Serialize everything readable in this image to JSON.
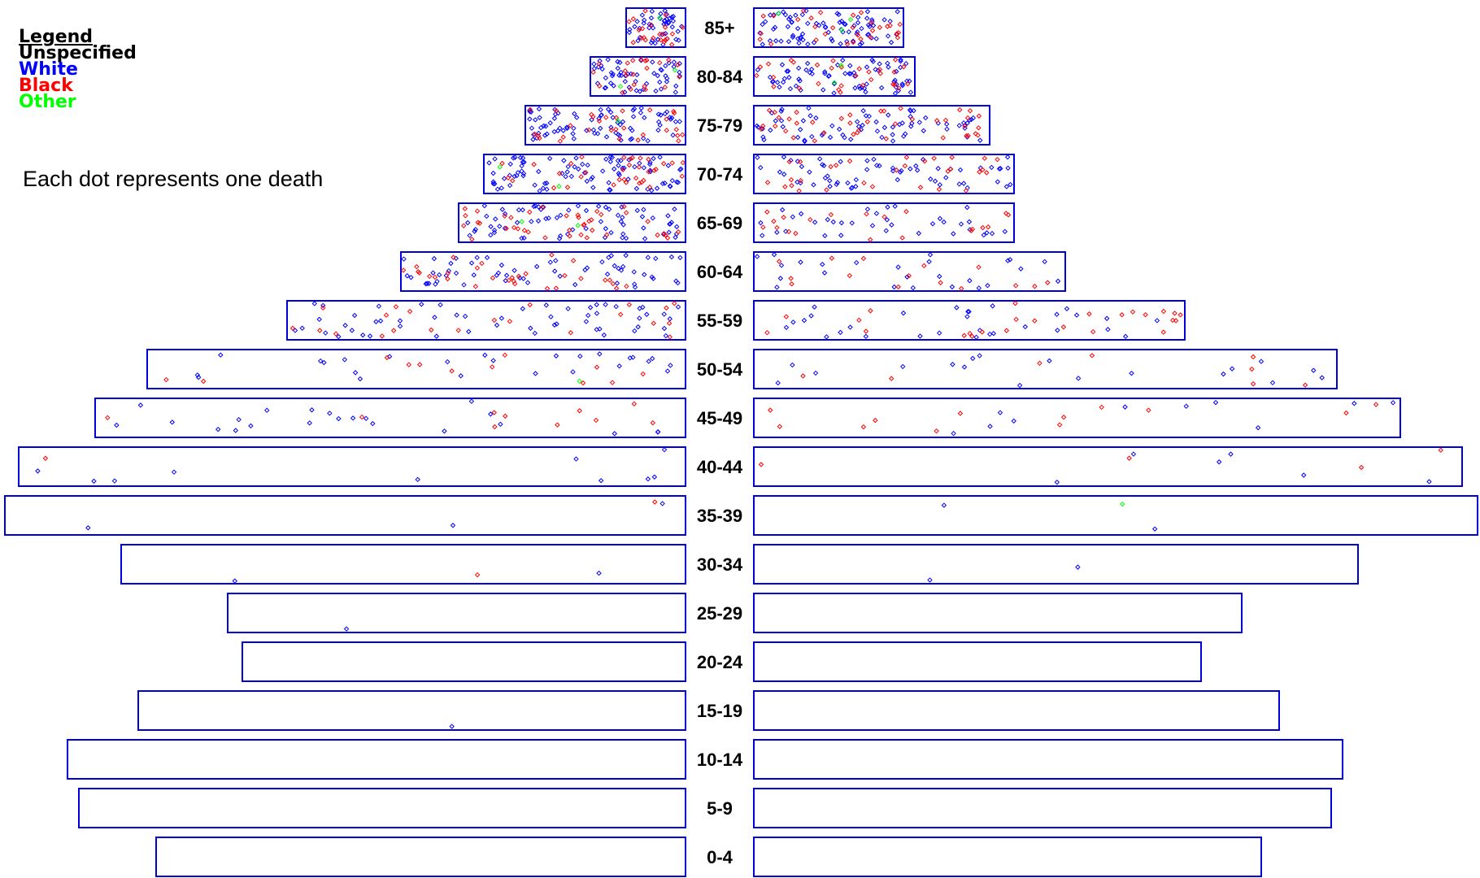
{
  "legend": {
    "title": "Legend",
    "items": [
      {
        "label": "Unspecified",
        "color": "#000000"
      },
      {
        "label": "White",
        "color": "#0000ff"
      },
      {
        "label": "Black",
        "color": "#ff0000"
      },
      {
        "label": "Other",
        "color": "#00ff00"
      }
    ]
  },
  "note": "Each dot represents one death",
  "chart_data": {
    "type": "population-pyramid",
    "title": "",
    "xlabel": "",
    "ylabel": "",
    "grid": false,
    "legend_position": "top-left",
    "age_groups": [
      "85+",
      "80-84",
      "75-79",
      "70-74",
      "65-69",
      "60-64",
      "55-59",
      "50-54",
      "45-49",
      "40-44",
      "35-39",
      "30-34",
      "25-29",
      "20-24",
      "15-19",
      "10-14",
      "5-9",
      "0-4"
    ],
    "series": [
      {
        "side": "left",
        "values": [
          73,
          117,
          197,
          248,
          279,
          350,
          490,
          662,
          726,
          820,
          837,
          694,
          563,
          545,
          673,
          760,
          746,
          651
        ]
      },
      {
        "side": "right",
        "values": [
          184,
          198,
          290,
          320,
          320,
          383,
          530,
          717,
          795,
          871,
          890,
          743,
          600,
          550,
          646,
          724,
          710,
          624
        ]
      }
    ],
    "dot_counts": [
      {
        "age": "85+",
        "left": {
          "white": 45,
          "black": 22,
          "other": 1
        },
        "right": {
          "white": 80,
          "black": 30,
          "other": 3
        }
      },
      {
        "age": "80-84",
        "left": {
          "white": 55,
          "black": 22,
          "other": 2
        },
        "right": {
          "white": 70,
          "black": 30,
          "other": 2
        }
      },
      {
        "age": "75-79",
        "left": {
          "white": 80,
          "black": 30,
          "other": 1
        },
        "right": {
          "white": 70,
          "black": 40,
          "other": 0
        }
      },
      {
        "age": "70-74",
        "left": {
          "white": 90,
          "black": 35,
          "other": 2
        },
        "right": {
          "white": 60,
          "black": 30,
          "other": 0
        }
      },
      {
        "age": "65-69",
        "left": {
          "white": 70,
          "black": 40,
          "other": 2
        },
        "right": {
          "white": 35,
          "black": 20,
          "other": 0
        }
      },
      {
        "age": "60-64",
        "left": {
          "white": 60,
          "black": 30,
          "other": 0
        },
        "right": {
          "white": 25,
          "black": 15,
          "other": 0
        }
      },
      {
        "age": "55-59",
        "left": {
          "white": 55,
          "black": 22,
          "other": 0
        },
        "right": {
          "white": 30,
          "black": 25,
          "other": 0
        }
      },
      {
        "age": "50-54",
        "left": {
          "white": 25,
          "black": 12,
          "other": 1
        },
        "right": {
          "white": 18,
          "black": 8,
          "other": 0
        }
      },
      {
        "age": "45-49",
        "left": {
          "white": 22,
          "black": 10,
          "other": 0
        },
        "right": {
          "white": 10,
          "black": 12,
          "other": 0
        }
      },
      {
        "age": "40-44",
        "left": {
          "white": 10,
          "black": 1,
          "other": 0
        },
        "right": {
          "white": 6,
          "black": 4,
          "other": 0
        }
      },
      {
        "age": "35-39",
        "left": {
          "white": 3,
          "black": 1,
          "other": 0
        },
        "right": {
          "white": 2,
          "black": 0,
          "other": 1
        }
      },
      {
        "age": "30-34",
        "left": {
          "white": 2,
          "black": 1,
          "other": 0
        },
        "right": {
          "white": 2,
          "black": 0,
          "other": 0
        }
      },
      {
        "age": "25-29",
        "left": {
          "white": 1,
          "black": 0,
          "other": 0
        },
        "right": {
          "white": 0,
          "black": 0,
          "other": 0
        }
      },
      {
        "age": "20-24",
        "left": {
          "white": 0,
          "black": 0,
          "other": 0
        },
        "right": {
          "white": 0,
          "black": 0,
          "other": 0
        }
      },
      {
        "age": "15-19",
        "left": {
          "white": 1,
          "black": 0,
          "other": 0
        },
        "right": {
          "white": 0,
          "black": 0,
          "other": 0
        }
      },
      {
        "age": "10-14",
        "left": {
          "white": 0,
          "black": 0,
          "other": 0
        },
        "right": {
          "white": 0,
          "black": 0,
          "other": 0
        }
      },
      {
        "age": "5-9",
        "left": {
          "white": 0,
          "black": 0,
          "other": 0
        },
        "right": {
          "white": 0,
          "black": 0,
          "other": 0
        }
      },
      {
        "age": "0-4",
        "left": {
          "white": 0,
          "black": 0,
          "other": 0
        },
        "right": {
          "white": 0,
          "black": 0,
          "other": 0
        }
      }
    ],
    "bar_stroke_color": "#0000dd"
  }
}
